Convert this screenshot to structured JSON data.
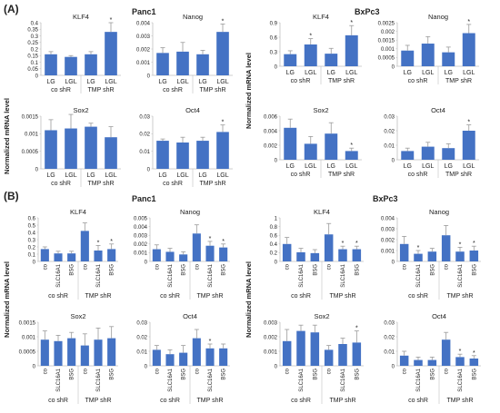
{
  "panel_a_label": "(A)",
  "panel_b_label": "(B)",
  "ylabel": "Normalized mRNA level",
  "cell_lines": {
    "panc1": "Panc1",
    "bxpc3": "BxPc3"
  },
  "colors": {
    "bar": "#4472c4",
    "error": "#9a9a9a",
    "axis": "#bfbfbf"
  },
  "chart_data": [
    {
      "id": "a-p-klf4",
      "panel": "A",
      "cell": "Panc1",
      "type": "bar",
      "title": "KLF4",
      "categories": [
        "LG",
        "LGL",
        "LG",
        "LGL"
      ],
      "groups": [
        "co shR",
        "TMP shR"
      ],
      "values": [
        0.16,
        0.14,
        0.16,
        0.33
      ],
      "errors": [
        0.02,
        0.01,
        0.02,
        0.07
      ],
      "sig": [
        false,
        false,
        false,
        true
      ],
      "ylim": [
        0,
        0.4
      ],
      "ticks": [
        "0",
        "0.05",
        "0.1",
        "0.15",
        "0.2",
        "0.25",
        "0.3",
        "0.35",
        "0.4"
      ]
    },
    {
      "id": "a-p-nanog",
      "panel": "A",
      "cell": "Panc1",
      "type": "bar",
      "title": "Nanog",
      "categories": [
        "LG",
        "LGL",
        "LG",
        "LGL"
      ],
      "groups": [
        "co shR",
        "TMP shR"
      ],
      "values": [
        0.0017,
        0.0018,
        0.0016,
        0.0033
      ],
      "errors": [
        0.0004,
        0.0007,
        0.0003,
        0.0006
      ],
      "sig": [
        false,
        false,
        false,
        true
      ],
      "ylim": [
        0,
        0.004
      ],
      "ticks": [
        "0",
        "0.001",
        "0.002",
        "0.003",
        "0.004"
      ]
    },
    {
      "id": "a-p-sox2",
      "panel": "A",
      "cell": "Panc1",
      "type": "bar",
      "title": "Sox2",
      "categories": [
        "LG",
        "LGL",
        "LG",
        "LGL"
      ],
      "groups": [
        "co shR",
        "TMP shR"
      ],
      "values": [
        0.0011,
        0.00115,
        0.0012,
        0.0009
      ],
      "errors": [
        0.0003,
        0.0004,
        0.0001,
        0.0003
      ],
      "sig": [
        false,
        false,
        false,
        false
      ],
      "ylim": [
        0,
        0.0015
      ],
      "ticks": [
        "0",
        "0.0005",
        "0.001",
        "0.0015"
      ]
    },
    {
      "id": "a-p-oct4",
      "panel": "A",
      "cell": "Panc1",
      "type": "bar",
      "title": "Oct4",
      "categories": [
        "LG",
        "LGL",
        "LG",
        "LGL"
      ],
      "groups": [
        "co shR",
        "TMP shR"
      ],
      "values": [
        0.016,
        0.015,
        0.016,
        0.021
      ],
      "errors": [
        0.001,
        0.003,
        0.002,
        0.004
      ],
      "sig": [
        false,
        false,
        false,
        true
      ],
      "ylim": [
        0,
        0.03
      ],
      "ticks": [
        "0",
        "0.01",
        "0.02",
        "0.03"
      ]
    },
    {
      "id": "a-b-klf4",
      "panel": "A",
      "cell": "BxPc3",
      "type": "bar",
      "title": "KLF4",
      "categories": [
        "LG",
        "LGL",
        "LG",
        "LGL"
      ],
      "groups": [
        "co shR",
        "TMP shR"
      ],
      "values": [
        0.25,
        0.45,
        0.26,
        0.64
      ],
      "errors": [
        0.07,
        0.12,
        0.11,
        0.2
      ],
      "sig": [
        false,
        true,
        false,
        true
      ],
      "ylim": [
        0,
        0.9
      ],
      "ticks": [
        "0",
        "0.3",
        "0.6",
        "0.9"
      ]
    },
    {
      "id": "a-b-nanog",
      "panel": "A",
      "cell": "BxPc3",
      "type": "bar",
      "title": "Nanog",
      "categories": [
        "LG",
        "LGL",
        "LG",
        "LGL"
      ],
      "groups": [
        "co shR",
        "TMP shR"
      ],
      "values": [
        0.0009,
        0.0013,
        0.0008,
        0.0019
      ],
      "errors": [
        0.0003,
        0.0004,
        0.0003,
        0.0005
      ],
      "sig": [
        false,
        false,
        false,
        true
      ],
      "ylim": [
        0,
        0.0025
      ],
      "ticks": [
        "0",
        "0.0005",
        "0.001",
        "0.0015",
        "0.002",
        "0.0025"
      ]
    },
    {
      "id": "a-b-sox2",
      "panel": "A",
      "cell": "BxPc3",
      "type": "bar",
      "title": "Sox2",
      "categories": [
        "LG",
        "LGL",
        "LG",
        "LGL"
      ],
      "groups": [
        "co shR",
        "TMP shR"
      ],
      "values": [
        0.0044,
        0.0022,
        0.0036,
        0.0012
      ],
      "errors": [
        0.0012,
        0.001,
        0.0015,
        0.0004
      ],
      "sig": [
        false,
        false,
        false,
        true
      ],
      "ylim": [
        0,
        0.006
      ],
      "ticks": [
        "0",
        "0.002",
        "0.004",
        "0.006"
      ]
    },
    {
      "id": "a-b-oct4",
      "panel": "A",
      "cell": "BxPc3",
      "type": "bar",
      "title": "Oct4",
      "categories": [
        "LG",
        "LGL",
        "LG",
        "LGL"
      ],
      "groups": [
        "co shR",
        "TMP shR"
      ],
      "values": [
        0.006,
        0.009,
        0.008,
        0.02
      ],
      "errors": [
        0.002,
        0.003,
        0.003,
        0.004
      ],
      "sig": [
        false,
        false,
        false,
        true
      ],
      "ylim": [
        0,
        0.03
      ],
      "ticks": [
        "0",
        "0.01",
        "0.02",
        "0.03"
      ]
    },
    {
      "id": "b-p-klf4",
      "panel": "B",
      "cell": "Panc1",
      "type": "bar",
      "title": "KLF4",
      "categories": [
        "co",
        "SLC16A1",
        "BSG",
        "co",
        "SLC16A1",
        "BSG"
      ],
      "groups": [
        "co shR",
        "TMP shR"
      ],
      "values": [
        0.17,
        0.11,
        0.11,
        0.42,
        0.15,
        0.17
      ],
      "errors": [
        0.03,
        0.03,
        0.03,
        0.11,
        0.07,
        0.07
      ],
      "sig": [
        false,
        false,
        false,
        false,
        true,
        true
      ],
      "ylim": [
        0,
        0.6
      ],
      "ticks": [
        "0",
        "0.1",
        "0.2",
        "0.3",
        "0.4",
        "0.5",
        "0.6"
      ]
    },
    {
      "id": "b-p-nanog",
      "panel": "B",
      "cell": "Panc1",
      "type": "bar",
      "title": "Nanog",
      "categories": [
        "co",
        "SLC16A1",
        "BSG",
        "co",
        "SLC16A1",
        "BSG"
      ],
      "groups": [
        "co shR",
        "TMP shR"
      ],
      "values": [
        0.0014,
        0.0011,
        0.0008,
        0.0032,
        0.0018,
        0.0016
      ],
      "errors": [
        0.0005,
        0.0004,
        0.0003,
        0.001,
        0.0005,
        0.0004
      ],
      "sig": [
        false,
        false,
        false,
        false,
        true,
        true
      ],
      "ylim": [
        0,
        0.005
      ],
      "ticks": [
        "0",
        "0.001",
        "0.002",
        "0.003",
        "0.004",
        "0.005"
      ]
    },
    {
      "id": "b-p-sox2",
      "panel": "B",
      "cell": "Panc1",
      "type": "bar",
      "title": "Sox2",
      "categories": [
        "co",
        "SLC16A1",
        "BSG",
        "co",
        "SLC16A1",
        "BSG"
      ],
      "groups": [
        "co shR",
        "TMP shR"
      ],
      "values": [
        0.0009,
        0.00085,
        0.00095,
        0.0007,
        0.0009,
        0.00095
      ],
      "errors": [
        0.0003,
        0.0002,
        0.0002,
        0.0004,
        0.0004,
        0.0004
      ],
      "sig": [
        false,
        false,
        false,
        false,
        false,
        false
      ],
      "ylim": [
        0,
        0.0015
      ],
      "ticks": [
        "0",
        "0.0005",
        "0.001",
        "0.0015"
      ]
    },
    {
      "id": "b-p-oct4",
      "panel": "B",
      "cell": "Panc1",
      "type": "bar",
      "title": "Oct4",
      "categories": [
        "co",
        "SLC16A1",
        "BSG",
        "co",
        "SLC16A1",
        "BSG"
      ],
      "groups": [
        "co shR",
        "TMP shR"
      ],
      "values": [
        0.011,
        0.008,
        0.009,
        0.019,
        0.012,
        0.012
      ],
      "errors": [
        0.003,
        0.003,
        0.005,
        0.006,
        0.003,
        0.003
      ],
      "sig": [
        false,
        false,
        false,
        false,
        true,
        false
      ],
      "ylim": [
        0,
        0.03
      ],
      "ticks": [
        "0",
        "0.01",
        "0.02",
        "0.03"
      ]
    },
    {
      "id": "b-b-klf4",
      "panel": "B",
      "cell": "BxPc3",
      "type": "bar",
      "title": "KLF4",
      "categories": [
        "co",
        "SLC16A1",
        "BSG",
        "co",
        "SLC16A1",
        "BSG"
      ],
      "groups": [
        "co shR",
        "TMP shR"
      ],
      "values": [
        0.4,
        0.21,
        0.19,
        0.62,
        0.28,
        0.28
      ],
      "errors": [
        0.15,
        0.09,
        0.08,
        0.25,
        0.07,
        0.07
      ],
      "sig": [
        false,
        false,
        false,
        false,
        true,
        true
      ],
      "ylim": [
        0,
        1
      ],
      "ticks": [
        "0",
        "0.2",
        "0.4",
        "0.6",
        "0.8",
        "1"
      ]
    },
    {
      "id": "b-b-nanog",
      "panel": "B",
      "cell": "BxPc3",
      "type": "bar",
      "title": "Nanog",
      "categories": [
        "co",
        "SLC16A1",
        "BSG",
        "co",
        "SLC16A1",
        "BSG"
      ],
      "groups": [
        "co shR",
        "TMP shR"
      ],
      "values": [
        0.0016,
        0.0007,
        0.0009,
        0.0024,
        0.0009,
        0.001
      ],
      "errors": [
        0.0007,
        0.0003,
        0.0003,
        0.0009,
        0.0004,
        0.0004
      ],
      "sig": [
        false,
        true,
        false,
        false,
        true,
        true
      ],
      "ylim": [
        0,
        0.004
      ],
      "ticks": [
        "0",
        "0.001",
        "0.002",
        "0.003",
        "0.004"
      ]
    },
    {
      "id": "b-b-sox2",
      "panel": "B",
      "cell": "BxPc3",
      "type": "bar",
      "title": "Sox2",
      "categories": [
        "co",
        "SLC16A1",
        "BSG",
        "co",
        "SLC16A1",
        "BSG"
      ],
      "groups": [
        "co shR",
        "TMP shR"
      ],
      "values": [
        0.0017,
        0.0024,
        0.0023,
        0.0011,
        0.0015,
        0.0016
      ],
      "errors": [
        0.0008,
        0.0004,
        0.0005,
        0.0003,
        0.0004,
        0.0008
      ],
      "sig": [
        false,
        false,
        false,
        false,
        false,
        true
      ],
      "ylim": [
        0,
        0.003
      ],
      "ticks": [
        "0",
        "0.001",
        "0.002",
        "0.003"
      ]
    },
    {
      "id": "b-b-oct4",
      "panel": "B",
      "cell": "BxPc3",
      "type": "bar",
      "title": "Oct4",
      "categories": [
        "co",
        "SLC16A1",
        "BSG",
        "co",
        "SLC16A1",
        "BSG"
      ],
      "groups": [
        "co shR",
        "TMP shR"
      ],
      "values": [
        0.007,
        0.004,
        0.004,
        0.018,
        0.006,
        0.005
      ],
      "errors": [
        0.003,
        0.002,
        0.002,
        0.005,
        0.002,
        0.002
      ],
      "sig": [
        false,
        false,
        false,
        false,
        true,
        true
      ],
      "ylim": [
        0,
        0.03
      ],
      "ticks": [
        "0",
        "0.01",
        "0.02",
        "0.03"
      ]
    }
  ]
}
